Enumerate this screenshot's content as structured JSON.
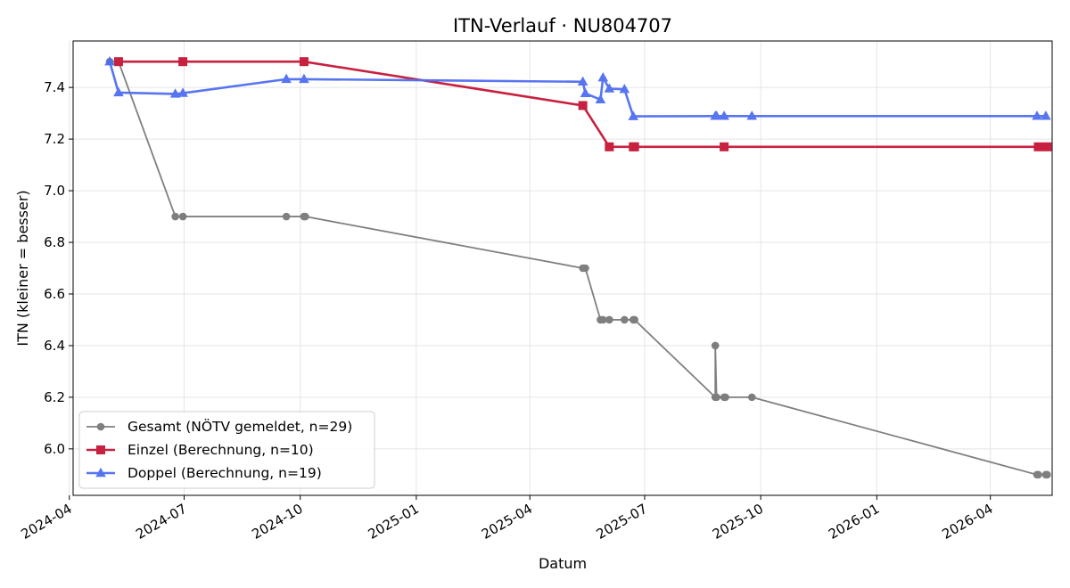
{
  "chart_data": {
    "type": "line",
    "title": "ITN-Verlauf · NU804707",
    "xlabel": "Datum",
    "ylabel": "ITN  (kleiner = besser)",
    "x_axis": "date",
    "xlim": [
      "2024-04-04",
      "2026-05-20"
    ],
    "ylim": [
      5.82,
      7.58
    ],
    "x_ticks": [
      "2024-04",
      "2024-07",
      "2024-10",
      "2025-01",
      "2025-04",
      "2025-07",
      "2025-10",
      "2026-01",
      "2026-04"
    ],
    "y_ticks": [
      6.0,
      6.2,
      6.4,
      6.6,
      6.8,
      7.0,
      7.2,
      7.4
    ],
    "grid": true,
    "legend_position": "lower-left",
    "series": [
      {
        "name": "Gesamt (NÖTV gemeldet, n=29)",
        "color": "#555555",
        "marker": "circle",
        "points": [
          {
            "x": "2024-05-03",
            "y": 7.5
          },
          {
            "x": "2024-05-10",
            "y": 7.5
          },
          {
            "x": "2024-06-24",
            "y": 6.9
          },
          {
            "x": "2024-06-30",
            "y": 6.9
          },
          {
            "x": "2024-09-20",
            "y": 6.9
          },
          {
            "x": "2024-10-04",
            "y": 6.9
          },
          {
            "x": "2024-10-05",
            "y": 6.9
          },
          {
            "x": "2025-05-13",
            "y": 6.7
          },
          {
            "x": "2025-05-15",
            "y": 6.7
          },
          {
            "x": "2025-05-27",
            "y": 6.5
          },
          {
            "x": "2025-05-29",
            "y": 6.5
          },
          {
            "x": "2025-06-03",
            "y": 6.5
          },
          {
            "x": "2025-06-15",
            "y": 6.5
          },
          {
            "x": "2025-06-22",
            "y": 6.5
          },
          {
            "x": "2025-06-23",
            "y": 6.5
          },
          {
            "x": "2025-08-26",
            "y": 6.2
          },
          {
            "x": "2025-08-26",
            "y": 6.4
          },
          {
            "x": "2025-08-27",
            "y": 6.2
          },
          {
            "x": "2025-09-02",
            "y": 6.2
          },
          {
            "x": "2025-09-03",
            "y": 6.2
          },
          {
            "x": "2025-09-24",
            "y": 6.2
          },
          {
            "x": "2026-05-08",
            "y": 5.9
          },
          {
            "x": "2026-05-09",
            "y": 5.9
          },
          {
            "x": "2026-05-15",
            "y": 5.9
          },
          {
            "x": "2026-05-16",
            "y": 5.9
          }
        ]
      },
      {
        "name": "Einzel (Berechnung, n=10)",
        "color": "#c8203f",
        "marker": "square",
        "points": [
          {
            "x": "2024-05-10",
            "y": 7.5
          },
          {
            "x": "2024-06-30",
            "y": 7.5
          },
          {
            "x": "2024-10-04",
            "y": 7.5
          },
          {
            "x": "2025-05-13",
            "y": 7.33
          },
          {
            "x": "2025-06-03",
            "y": 7.17
          },
          {
            "x": "2025-06-22",
            "y": 7.17
          },
          {
            "x": "2025-06-23",
            "y": 7.17
          },
          {
            "x": "2025-09-02",
            "y": 7.17
          },
          {
            "x": "2026-05-09",
            "y": 7.17
          },
          {
            "x": "2026-05-16",
            "y": 7.17
          }
        ]
      },
      {
        "name": "Doppel (Berechnung, n=19)",
        "color": "#4f6ef0",
        "marker": "triangle",
        "points": [
          {
            "x": "2024-05-03",
            "y": 7.5
          },
          {
            "x": "2024-05-10",
            "y": 7.38
          },
          {
            "x": "2024-06-24",
            "y": 7.375
          },
          {
            "x": "2024-06-30",
            "y": 7.378
          },
          {
            "x": "2024-09-20",
            "y": 7.432
          },
          {
            "x": "2024-10-04",
            "y": 7.432
          },
          {
            "x": "2025-05-13",
            "y": 7.422
          },
          {
            "x": "2025-05-15",
            "y": 7.377
          },
          {
            "x": "2025-05-27",
            "y": 7.353
          },
          {
            "x": "2025-05-29",
            "y": 7.438
          },
          {
            "x": "2025-06-03",
            "y": 7.395
          },
          {
            "x": "2025-06-15",
            "y": 7.393
          },
          {
            "x": "2025-06-22",
            "y": 7.288
          },
          {
            "x": "2025-08-26",
            "y": 7.289
          },
          {
            "x": "2025-08-27",
            "y": 7.289
          },
          {
            "x": "2025-09-02",
            "y": 7.289
          },
          {
            "x": "2025-09-24",
            "y": 7.289
          },
          {
            "x": "2026-05-08",
            "y": 7.289
          },
          {
            "x": "2026-05-15",
            "y": 7.289
          }
        ]
      }
    ]
  }
}
